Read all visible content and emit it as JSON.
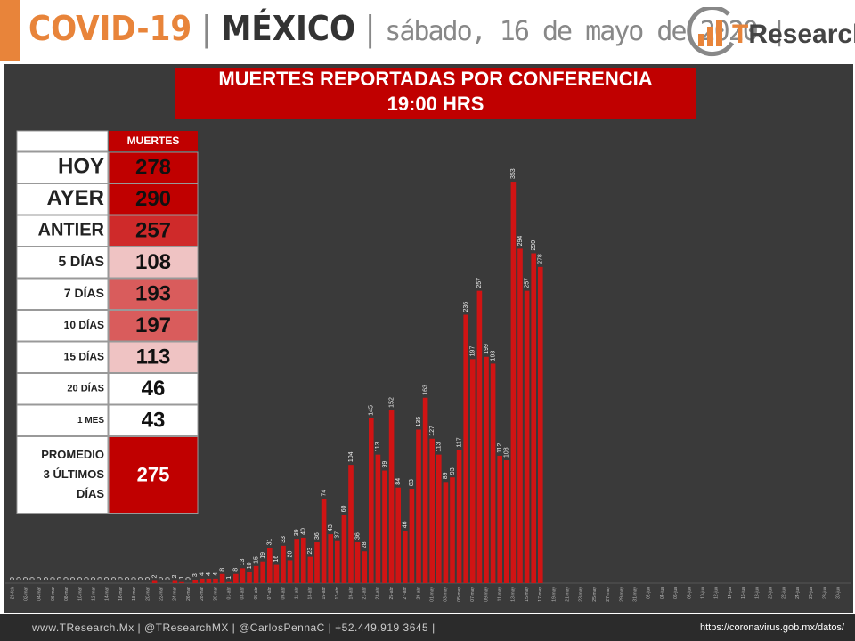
{
  "header": {
    "title_a": "COVID-19",
    "sep": "|",
    "title_b": "MÉXICO",
    "date": "sábado, 16 de mayo de 2020 |",
    "logo_t": "T",
    "logo_rest": "Research"
  },
  "footer": {
    "contacts": "www.TResearch.Mx  |  @TResearchMX  |  @CarlosPennaC  |  +52.449.919 3645  |",
    "source": "https://coronavirus.gob.mx/datos/"
  },
  "table": {
    "header": "MUERTES",
    "rows": [
      {
        "label": [
          "HOY"
        ],
        "value": "278",
        "color": "#c00000"
      },
      {
        "label": [
          "AYER"
        ],
        "value": "290",
        "color": "#c00000"
      },
      {
        "label": [
          "ANTIER"
        ],
        "value": "257",
        "color": "#cf2a2a"
      },
      {
        "label": [
          "5 DÍAS"
        ],
        "value": "108",
        "color": "#efc3c3"
      },
      {
        "label": [
          "7 DÍAS"
        ],
        "value": "193",
        "color": "#d95c5c"
      },
      {
        "label": [
          "10 DÍAS"
        ],
        "value": "197",
        "color": "#d95c5c"
      },
      {
        "label": [
          "15 DÍAS"
        ],
        "value": "113",
        "color": "#efc3c3"
      },
      {
        "label": [
          "20 DÍAS"
        ],
        "value": "46",
        "color": "#ffffff"
      },
      {
        "label": [
          "1 MES"
        ],
        "value": "43",
        "color": "#ffffff"
      },
      {
        "label": [
          "PROMEDIO",
          "3 ÚLTIMOS",
          "DÍAS"
        ],
        "value": "275",
        "color": "#c00000"
      }
    ]
  },
  "chart_data": {
    "type": "bar",
    "title": [
      "MUERTES REPORTADAS POR CONFERENCIA",
      "19:00 HRS"
    ],
    "color": "#d01414",
    "ylim": [
      0,
      400
    ],
    "categories": [
      "29-feb",
      null,
      "02-mar",
      null,
      "04-mar",
      null,
      "06-mar",
      null,
      "08-mar",
      null,
      "10-mar",
      null,
      "12-mar",
      null,
      "14-mar",
      null,
      "16-mar",
      null,
      "18-mar",
      null,
      "20-mar",
      null,
      "22-mar",
      null,
      "24-mar",
      null,
      "26-mar",
      null,
      "28-mar",
      null,
      "30-mar",
      null,
      "01-abr",
      null,
      "03-abr",
      null,
      "05-abr",
      null,
      "07-abr",
      null,
      "09-abr",
      null,
      "11-abr",
      null,
      "13-abr",
      null,
      "15-abr",
      null,
      "17-abr",
      null,
      "19-abr",
      null,
      "21-abr",
      null,
      "23-abr",
      null,
      "25-abr",
      null,
      "27-abr",
      null,
      "29-abr",
      null,
      "01-may",
      null,
      "03-may",
      null,
      "05-may",
      null,
      "07-may",
      null,
      "09-may",
      null,
      "11-may",
      null,
      "13-may",
      null,
      "15-may",
      null,
      "17-may",
      null,
      "19-may",
      null,
      "21-may",
      null,
      "23-may",
      null,
      "25-may",
      null,
      "27-may",
      null,
      "29-may",
      null,
      "31-may",
      null,
      "02-jun",
      null,
      "04-jun",
      null,
      "06-jun",
      null,
      "08-jun",
      null,
      "10-jun",
      null,
      "12-jun",
      null,
      "14-jun",
      null,
      "16-jun",
      null,
      "18-jun",
      null,
      "20-jun",
      null,
      "22-jun",
      null,
      "24-jun",
      null,
      "26-jun",
      null,
      "28-jun",
      null,
      "30-jun"
    ],
    "values": [
      0,
      0,
      0,
      0,
      0,
      0,
      0,
      0,
      0,
      0,
      0,
      0,
      0,
      0,
      0,
      0,
      0,
      0,
      0,
      0,
      0,
      2,
      0,
      0,
      2,
      1,
      0,
      3,
      4,
      4,
      4,
      8,
      1,
      8,
      13,
      10,
      15,
      19,
      31,
      16,
      33,
      20,
      39,
      40,
      23,
      36,
      74,
      43,
      37,
      60,
      104,
      36,
      28,
      145,
      113,
      99,
      152,
      84,
      46,
      83,
      135,
      163,
      127,
      113,
      89,
      93,
      117,
      236,
      197,
      257,
      199,
      193,
      112,
      108,
      353,
      294,
      257,
      290,
      278,
      null,
      null,
      null,
      null,
      null,
      null,
      null,
      null,
      null,
      null,
      null,
      null,
      null,
      null,
      null,
      null,
      null,
      null,
      null,
      null,
      null,
      null,
      null,
      null,
      null,
      null,
      null,
      null,
      null,
      null,
      null,
      null,
      null,
      null,
      null,
      null,
      null,
      null,
      null,
      null,
      null,
      null,
      null,
      null
    ]
  }
}
